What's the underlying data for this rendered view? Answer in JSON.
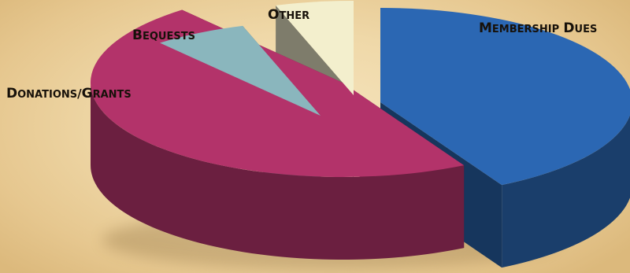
{
  "chart_data": {
    "type": "pie",
    "style": "3d-exploded",
    "title": "",
    "slices": [
      {
        "label": "Membership Dues",
        "value": 42,
        "color": "#2b67b3"
      },
      {
        "label": "Donations/Grants",
        "value": 47,
        "color": "#b3336a"
      },
      {
        "label": "Bequests",
        "value": 6,
        "color": "#8ab6bd"
      },
      {
        "label": "Other",
        "value": 5,
        "color": "#f3efcd"
      }
    ]
  }
}
